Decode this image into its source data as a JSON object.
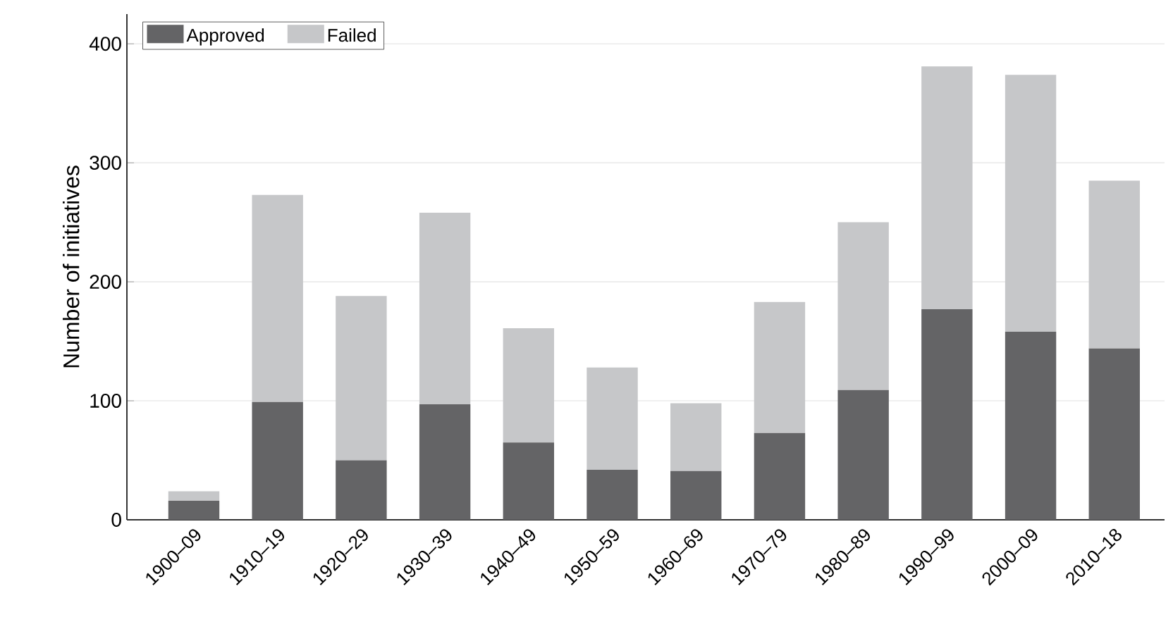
{
  "chart_data": {
    "type": "bar",
    "stacked": true,
    "ylabel": "Number of initiatives",
    "categories": [
      "1900–09",
      "1910–19",
      "1920–29",
      "1930–39",
      "1940–49",
      "1950–59",
      "1960–69",
      "1970–79",
      "1980–89",
      "1990–99",
      "2000–09",
      "2010–18"
    ],
    "series": [
      {
        "name": "Approved",
        "color": "#646466",
        "values": [
          16,
          99,
          50,
          97,
          65,
          42,
          41,
          73,
          109,
          177,
          158,
          144
        ]
      },
      {
        "name": "Failed",
        "color": "#c6c7c9",
        "values": [
          8,
          174,
          138,
          161,
          96,
          86,
          57,
          110,
          141,
          204,
          216,
          141
        ]
      }
    ],
    "ylim": [
      0,
      425
    ],
    "yticks": [
      0,
      100,
      200,
      300,
      400
    ],
    "grid": "y",
    "legend": "top left"
  }
}
